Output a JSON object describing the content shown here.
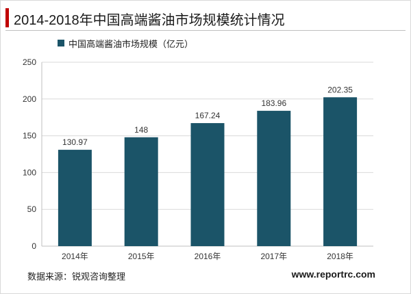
{
  "header": {
    "title": "2014-2018年中国高端酱油市场规模统计情况"
  },
  "footer": {
    "source": "数据来源：锐观咨询整理",
    "website": "www.reportrc.com"
  },
  "colors": {
    "accent": "#c00000",
    "bar": "#1b5468"
  },
  "chart_data": {
    "type": "bar",
    "categories": [
      "2014年",
      "2015年",
      "2016年",
      "2017年",
      "2018年"
    ],
    "series": [
      {
        "name": "中国高端酱油市场规模（亿元）",
        "values": [
          130.97,
          148,
          167.24,
          183.96,
          202.35
        ]
      }
    ],
    "data_labels": [
      "130.97",
      "148",
      "167.24",
      "183.96",
      "202.35"
    ],
    "y_ticks": [
      "0",
      "50",
      "100",
      "150",
      "200",
      "250"
    ],
    "ylim": [
      0,
      250
    ],
    "grid": true,
    "legend_position": "top-left"
  }
}
